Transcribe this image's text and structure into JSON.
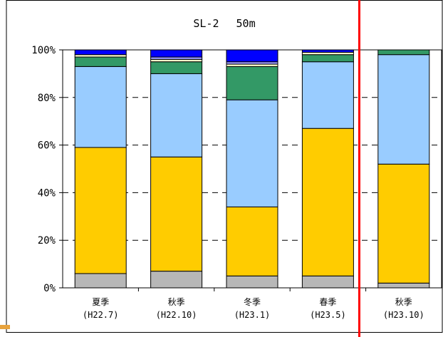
{
  "chart_data": {
    "type": "bar",
    "stacked": true,
    "title": "SL-2　 50m",
    "categories": [
      "夏季",
      "秋季",
      "冬季",
      "春季",
      "秋季"
    ],
    "category_sublabels": [
      "(H22.7)",
      "(H22.10)",
      "(H23.1)",
      "(H23.5)",
      "(H23.10)"
    ],
    "yticks": [
      "0%",
      "20%",
      "40%",
      "60%",
      "80%",
      "100%"
    ],
    "ylim": [
      0,
      100
    ],
    "grid": "dashed horizontal",
    "divider_after_category": 4,
    "series": [
      {
        "color": "#b7b7b7",
        "values": [
          6,
          7,
          5,
          5,
          2
        ]
      },
      {
        "color": "#ffcc00",
        "values": [
          53,
          48,
          29,
          62,
          50
        ]
      },
      {
        "color": "#99ccff",
        "values": [
          34,
          35,
          45,
          28,
          46
        ]
      },
      {
        "color": "#339966",
        "values": [
          4,
          5,
          14,
          3,
          2
        ]
      },
      {
        "color": "#ffffcc",
        "values": [
          1,
          1,
          1,
          1,
          0
        ]
      },
      {
        "color": "#9999ff",
        "values": [
          0,
          1,
          1,
          0,
          0
        ]
      },
      {
        "color": "#0000ff",
        "values": [
          2,
          3,
          5,
          1,
          0
        ]
      }
    ]
  }
}
